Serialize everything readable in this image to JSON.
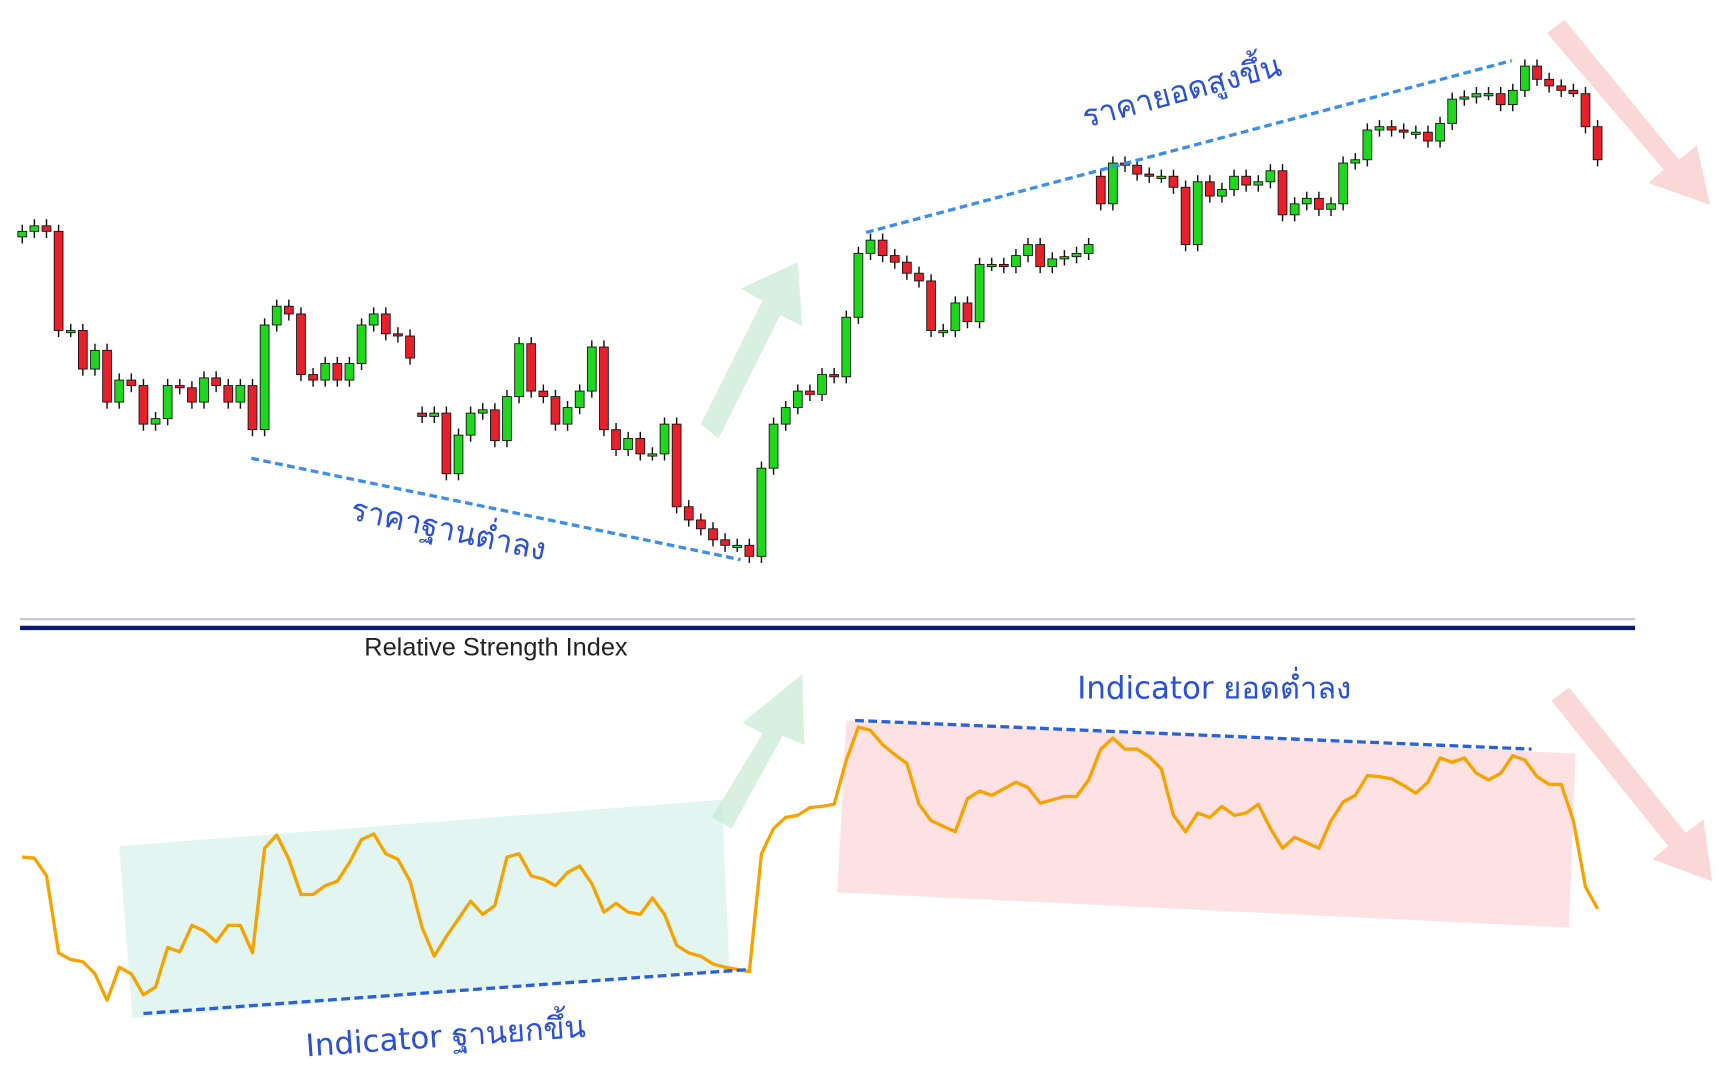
{
  "chart_data": [
    {
      "type": "candlestick",
      "categories": [
        null,
        null,
        null,
        null,
        null,
        null,
        null,
        null,
        null,
        null,
        null,
        null,
        null,
        null,
        null,
        null,
        null,
        null,
        null,
        null,
        null,
        null,
        null,
        null,
        null,
        null,
        null,
        null,
        null,
        null,
        null,
        null,
        null,
        null,
        null,
        null,
        null,
        null,
        null,
        null,
        null,
        null,
        null,
        null,
        null,
        null,
        null,
        null,
        null,
        null,
        null,
        null,
        null,
        null,
        null,
        null,
        null,
        null,
        null,
        null,
        null,
        null,
        null,
        null,
        null,
        null,
        null,
        null,
        null,
        null,
        null,
        null,
        null,
        null,
        null,
        null,
        null,
        null,
        null,
        null,
        null,
        null,
        null,
        null,
        null,
        null,
        null,
        null,
        null,
        null,
        null,
        null,
        null,
        null,
        null,
        null,
        null,
        null,
        null,
        null,
        null,
        null,
        null,
        null,
        null,
        null,
        null,
        null,
        null,
        null,
        null,
        null,
        null,
        null,
        null,
        null,
        null,
        null,
        null,
        null,
        null,
        null,
        null,
        null,
        null,
        null,
        null,
        null,
        null,
        null,
        null
      ],
      "open": [
        385,
        390,
        395,
        390,
        300,
        300,
        265,
        282,
        235,
        255,
        250,
        215,
        220,
        250,
        248,
        235,
        257,
        250,
        235,
        250,
        210,
        305,
        322,
        315,
        260,
        255,
        270,
        255,
        270,
        305,
        315,
        297,
        295,
        225,
        222,
        225,
        170,
        205,
        225,
        228,
        200,
        240,
        288,
        245,
        240,
        215,
        230,
        245,
        285,
        210,
        192,
        202,
        188,
        188,
        215,
        140,
        128,
        120,
        110,
        105,
        105,
        95,
        175,
        215,
        230,
        245,
        242,
        260,
        258,
        312,
        370,
        382,
        368,
        362,
        352,
        345,
        300,
        300,
        325,
        308,
        360,
        360,
        358,
        368,
        378,
        358,
        365,
        367,
        370,
        440,
        415,
        452,
        450,
        442,
        440,
        440,
        430,
        378,
        435,
        422,
        428,
        440,
        432,
        435,
        445,
        405,
        415,
        420,
        410,
        415,
        452,
        455,
        482,
        485,
        482,
        480,
        480,
        472,
        488,
        510,
        512,
        515,
        515,
        505,
        518,
        540,
        528,
        522,
        518,
        515,
        485
      ],
      "high": [
        396,
        401,
        401,
        396,
        306,
        306,
        288,
        288,
        261,
        261,
        256,
        226,
        256,
        256,
        254,
        263,
        263,
        256,
        256,
        256,
        311,
        328,
        328,
        321,
        266,
        276,
        276,
        276,
        311,
        321,
        321,
        303,
        301,
        231,
        231,
        231,
        211,
        231,
        234,
        234,
        246,
        294,
        294,
        251,
        246,
        236,
        251,
        291,
        291,
        216,
        208,
        208,
        194,
        221,
        221,
        146,
        134,
        126,
        116,
        111,
        111,
        181,
        221,
        236,
        251,
        251,
        266,
        266,
        318,
        376,
        388,
        388,
        374,
        368,
        358,
        351,
        306,
        331,
        331,
        366,
        366,
        366,
        374,
        384,
        384,
        371,
        373,
        376,
        384,
        446,
        458,
        458,
        456,
        448,
        446,
        446,
        436,
        441,
        441,
        434,
        446,
        446,
        441,
        451,
        451,
        421,
        426,
        426,
        421,
        458,
        461,
        488,
        491,
        491,
        488,
        486,
        486,
        494,
        516,
        518,
        521,
        521,
        521,
        524,
        546,
        546,
        534,
        528,
        524,
        521,
        491
      ],
      "low": [
        379,
        384,
        384,
        294,
        294,
        259,
        259,
        229,
        229,
        244,
        209,
        209,
        214,
        242,
        229,
        229,
        244,
        229,
        229,
        204,
        204,
        299,
        309,
        254,
        249,
        249,
        249,
        249,
        264,
        299,
        291,
        289,
        269,
        216,
        216,
        164,
        164,
        199,
        219,
        194,
        194,
        234,
        239,
        234,
        209,
        209,
        224,
        239,
        204,
        186,
        186,
        182,
        182,
        182,
        134,
        122,
        114,
        104,
        99,
        99,
        89,
        89,
        169,
        209,
        224,
        236,
        236,
        252,
        252,
        306,
        364,
        362,
        356,
        346,
        339,
        294,
        294,
        294,
        302,
        302,
        354,
        352,
        352,
        362,
        352,
        352,
        359,
        361,
        364,
        409,
        409,
        444,
        436,
        434,
        434,
        424,
        372,
        372,
        416,
        416,
        422,
        426,
        426,
        429,
        399,
        399,
        409,
        404,
        404,
        409,
        446,
        449,
        476,
        476,
        474,
        474,
        466,
        466,
        482,
        504,
        506,
        509,
        499,
        499,
        512,
        522,
        516,
        512,
        512,
        479,
        449
      ],
      "close": [
        390,
        395,
        390,
        300,
        300,
        265,
        282,
        235,
        255,
        250,
        215,
        220,
        250,
        248,
        235,
        257,
        250,
        235,
        250,
        210,
        305,
        322,
        315,
        260,
        255,
        270,
        255,
        270,
        305,
        315,
        297,
        295,
        275,
        222,
        225,
        170,
        205,
        225,
        228,
        200,
        240,
        288,
        245,
        240,
        215,
        230,
        245,
        285,
        210,
        192,
        202,
        188,
        188,
        215,
        140,
        128,
        120,
        110,
        105,
        105,
        95,
        175,
        215,
        230,
        245,
        242,
        260,
        258,
        312,
        370,
        382,
        368,
        362,
        352,
        345,
        300,
        300,
        325,
        308,
        360,
        360,
        358,
        368,
        378,
        358,
        365,
        367,
        370,
        378,
        415,
        452,
        450,
        442,
        440,
        440,
        430,
        378,
        435,
        422,
        428,
        440,
        432,
        435,
        445,
        405,
        415,
        420,
        410,
        415,
        452,
        455,
        482,
        485,
        482,
        480,
        480,
        472,
        488,
        510,
        512,
        515,
        515,
        505,
        518,
        540,
        528,
        522,
        518,
        515,
        485,
        455
      ],
      "up_color": "#1ed81e",
      "down_color": "#e8202a",
      "ylim": [
        60,
        600
      ],
      "annotations": [
        "ราคายอดสูงขึ้น",
        "ราคาฐานต่ำลง"
      ]
    },
    {
      "type": "line",
      "title": "Relative Strength Index",
      "categories": [
        null,
        null,
        null,
        null,
        null,
        null,
        null,
        null,
        null,
        null,
        null,
        null,
        null,
        null,
        null,
        null,
        null,
        null,
        null,
        null,
        null,
        null,
        null,
        null,
        null,
        null,
        null,
        null,
        null,
        null,
        null,
        null,
        null,
        null,
        null,
        null,
        null,
        null,
        null,
        null,
        null,
        null,
        null,
        null,
        null,
        null,
        null,
        null,
        null,
        null,
        null,
        null,
        null,
        null,
        null,
        null,
        null,
        null,
        null,
        null,
        null,
        null,
        null,
        null,
        null,
        null,
        null,
        null,
        null,
        null,
        null,
        null,
        null,
        null,
        null,
        null,
        null,
        null,
        null,
        null,
        null,
        null,
        null,
        null,
        null,
        null,
        null,
        null,
        null,
        null,
        null,
        null,
        null,
        null,
        null,
        null,
        null,
        null,
        null,
        null,
        null,
        null,
        null,
        null,
        null,
        null,
        null,
        null,
        null,
        null,
        null,
        null,
        null,
        null,
        null,
        null,
        null,
        null,
        null,
        null,
        null,
        null,
        null,
        null,
        null,
        null,
        null,
        null,
        null,
        null,
        null
      ],
      "values": [
        182,
        181,
        165,
        95,
        89,
        87,
        76,
        52,
        82,
        76,
        57,
        64,
        100,
        96,
        120,
        115,
        105,
        120,
        120,
        95,
        190,
        202,
        180,
        148,
        148,
        156,
        160,
        177,
        198,
        203,
        185,
        180,
        160,
        118,
        92,
        110,
        126,
        142,
        130,
        138,
        182,
        185,
        165,
        162,
        156,
        168,
        174,
        158,
        132,
        140,
        132,
        130,
        145,
        130,
        102,
        95,
        92,
        85,
        82,
        80,
        78,
        185,
        208,
        218,
        220,
        227,
        228,
        230,
        270,
        300,
        297,
        284,
        275,
        267,
        230,
        215,
        210,
        205,
        235,
        242,
        238,
        244,
        250,
        245,
        231,
        234,
        237,
        237,
        252,
        280,
        290,
        280,
        280,
        273,
        262,
        220,
        205,
        222,
        218,
        228,
        220,
        222,
        230,
        208,
        190,
        200,
        195,
        190,
        215,
        232,
        238,
        256,
        255,
        253,
        247,
        240,
        250,
        272,
        268,
        272,
        258,
        252,
        258,
        274,
        270,
        255,
        248,
        248,
        215,
        155,
        135
      ],
      "color": "#f5a300",
      "ylim": [
        0,
        360
      ],
      "annotations": [
        "Indicator ยอดต่ำลง",
        "Indicator ฐานยกขึ้น"
      ]
    }
  ]
}
